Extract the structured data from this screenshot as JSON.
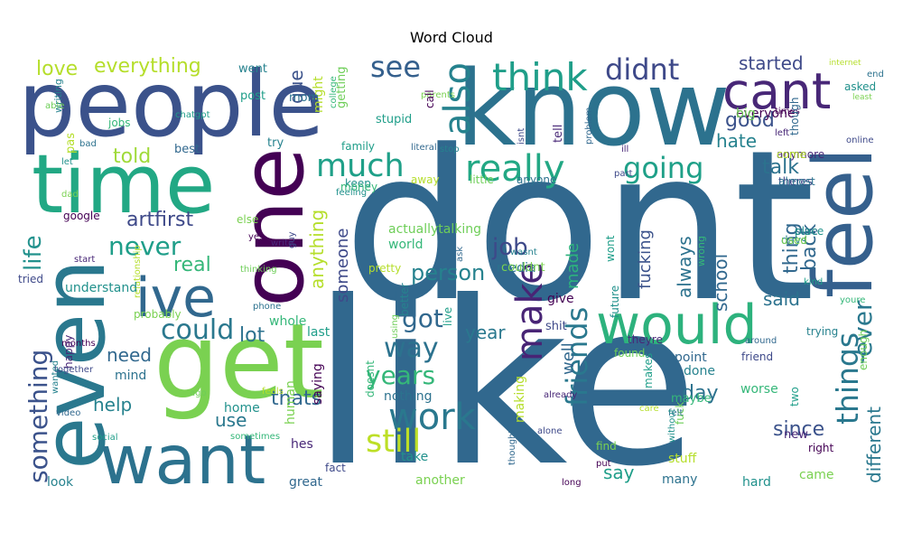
{
  "chart_data": {
    "type": "wordcloud",
    "title": "Word Cloud",
    "background": "#ffffff",
    "colormap": "viridis",
    "words": [
      {
        "text": "dont",
        "color": "#31688e"
      },
      {
        "text": "like",
        "color": "#31688e"
      },
      {
        "text": "people",
        "color": "#3b528b"
      },
      {
        "text": "know",
        "color": "#2c728e"
      },
      {
        "text": "even",
        "color": "#2a788e"
      },
      {
        "text": "get",
        "color": "#7ad151"
      },
      {
        "text": "feel",
        "color": "#35608d"
      },
      {
        "text": "time",
        "color": "#22a884"
      },
      {
        "text": "one",
        "color": "#440154"
      },
      {
        "text": "want",
        "color": "#2c728e"
      },
      {
        "text": "would",
        "color": "#2db27d"
      },
      {
        "text": "cant",
        "color": "#482777"
      },
      {
        "text": "ive",
        "color": "#31688e"
      },
      {
        "text": "think",
        "color": "#1f9e89"
      },
      {
        "text": "really",
        "color": "#22a884"
      },
      {
        "text": "work",
        "color": "#2a788e"
      },
      {
        "text": "also",
        "color": "#26828e"
      },
      {
        "text": "much",
        "color": "#1fa088"
      },
      {
        "text": "didnt",
        "color": "#3e4989"
      },
      {
        "text": "make",
        "color": "#482475"
      },
      {
        "text": "still",
        "color": "#bddf26"
      },
      {
        "text": "friends",
        "color": "#2a788e"
      },
      {
        "text": "going",
        "color": "#1fa088"
      },
      {
        "text": "things",
        "color": "#2a788e"
      },
      {
        "text": "something",
        "color": "#3b528b"
      },
      {
        "text": "could",
        "color": "#2a788e"
      },
      {
        "text": "see",
        "color": "#35608d"
      },
      {
        "text": "way",
        "color": "#2c728e"
      },
      {
        "text": "years",
        "color": "#35b779"
      },
      {
        "text": "got",
        "color": "#31688e"
      },
      {
        "text": "life",
        "color": "#21918c"
      },
      {
        "text": "never",
        "color": "#1f9e89"
      },
      {
        "text": "ever",
        "color": "#2a788e"
      },
      {
        "text": "everything",
        "color": "#b5de2b"
      },
      {
        "text": "artfirst",
        "color": "#3e4989"
      },
      {
        "text": "love",
        "color": "#b5de2b"
      },
      {
        "text": "job",
        "color": "#3e4989"
      },
      {
        "text": "person",
        "color": "#26828e"
      },
      {
        "text": "real",
        "color": "#35b779"
      },
      {
        "text": "told",
        "color": "#a0da39"
      },
      {
        "text": "talk",
        "color": "#2c728e"
      },
      {
        "text": "good",
        "color": "#3b528b"
      },
      {
        "text": "back",
        "color": "#31688e"
      },
      {
        "text": "said",
        "color": "#2c728e"
      },
      {
        "text": "hate",
        "color": "#26828e"
      },
      {
        "text": "since",
        "color": "#3b528b"
      },
      {
        "text": "thats",
        "color": "#31688e"
      },
      {
        "text": "different",
        "color": "#2a788e"
      },
      {
        "text": "anything",
        "color": "#b5de2b"
      },
      {
        "text": "someone",
        "color": "#3e4989"
      },
      {
        "text": "fucking",
        "color": "#3b528b"
      },
      {
        "text": "always",
        "color": "#2c728e"
      },
      {
        "text": "school",
        "color": "#31688e"
      },
      {
        "text": "thing",
        "color": "#31688e"
      },
      {
        "text": "well",
        "color": "#31688e"
      },
      {
        "text": "made",
        "color": "#2db27d"
      },
      {
        "text": "year",
        "color": "#2a788e"
      },
      {
        "text": "lot",
        "color": "#2c728e"
      },
      {
        "text": "day",
        "color": "#2c728e"
      },
      {
        "text": "need",
        "color": "#31688e"
      },
      {
        "text": "help",
        "color": "#26828e"
      },
      {
        "text": "use",
        "color": "#2a788e"
      },
      {
        "text": "say",
        "color": "#1f9e89"
      },
      {
        "text": "started",
        "color": "#3e4989"
      },
      {
        "text": "que",
        "color": "#3b528b"
      }
    ],
    "small_words": [
      "everyone",
      "anymore",
      "theres",
      "sure",
      "days",
      "kind",
      "youre",
      "enough",
      "internet",
      "end",
      "asked",
      "least",
      "times",
      "left",
      "online",
      "though",
      "went",
      "post",
      "college",
      "getting",
      "might",
      "mom",
      "keep",
      "parents",
      "call",
      "tell",
      "isnt",
      "problem",
      "writing",
      "chatgpt",
      "jobs",
      "able",
      "pas",
      "bad",
      "let",
      "dad",
      "google",
      "start",
      "tried",
      "best",
      "try",
      "family",
      "money",
      "little",
      "away",
      "anyone",
      "feeling",
      "else",
      "yes",
      "write",
      "guy",
      "ask",
      "wasnt",
      "wont",
      "wrong",
      "thinking",
      "relationship",
      "phone",
      "understand",
      "probably",
      "months",
      "happy",
      "together",
      "video",
      "wanted",
      "social",
      "sometimes",
      "ago",
      "feels",
      "mind",
      "home",
      "human",
      "saying",
      "hes",
      "fact",
      "great",
      "look",
      "last",
      "doesnt",
      "using",
      "making",
      "nothing",
      "take",
      "another",
      "long",
      "already",
      "alone",
      "thought",
      "better",
      "live",
      "world",
      "actuallytalking",
      "pretty",
      "media",
      "future",
      "couldnt",
      "give",
      "theyre",
      "shit",
      "point",
      "done",
      "makes",
      "maybe",
      "fuck",
      "stuff",
      "many",
      "hard",
      "came",
      "right",
      "new",
      "friend",
      "around",
      "trying",
      "two",
      "worse",
      "found",
      "care",
      "felt",
      "without",
      "find",
      "put",
      "ill",
      "part",
      "literally",
      "stop",
      "stupid",
      "whole",
      "big",
      "come",
      "almost",
      "place",
      "used"
    ]
  }
}
